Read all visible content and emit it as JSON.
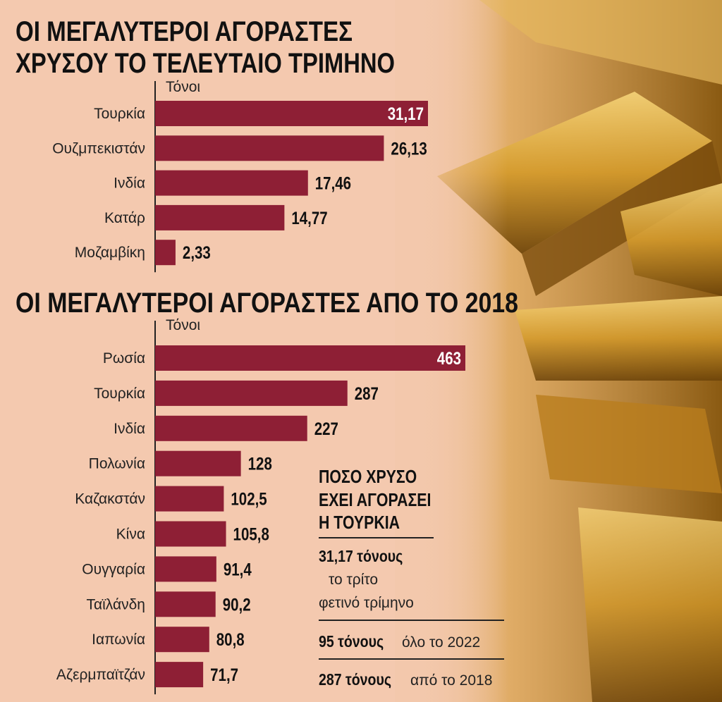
{
  "chart_data": [
    {
      "type": "bar",
      "orientation": "horizontal",
      "title": [
        "ΟΙ ΜΕΓΑΛΥΤΕΡΟΙ ΑΓΟΡΑΣΤΕΣ",
        "ΧΡΥΣΟΥ ΤΟ ΤΕΛΕΥΤΑΙΟ ΤΡΙΜΗΝΟ"
      ],
      "unit_label": "Τόνοι",
      "categories": [
        "Τουρκία",
        "Ουζμπεκιστάν",
        "Ινδία",
        "Κατάρ",
        "Μοζαμβίκη"
      ],
      "values": [
        31.17,
        26.13,
        17.46,
        14.77,
        2.33
      ],
      "value_labels": [
        "31,17",
        "26,13",
        "17,46",
        "14,77",
        "2,33"
      ],
      "color": "#8e1f35"
    },
    {
      "type": "bar",
      "orientation": "horizontal",
      "title": [
        "ΟΙ ΜΕΓΑΛΥΤΕΡΟΙ ΑΓΟΡΑΣΤΕΣ ΑΠΟ ΤΟ 2018"
      ],
      "unit_label": "Τόνοι",
      "categories": [
        "Ρωσία",
        "Τουρκία",
        "Ινδία",
        "Πολωνία",
        "Καζακστάν",
        "Κίνα",
        "Ουγγαρία",
        "Ταϊλάνδη",
        "Ιαπωνία",
        "Αζερμπαϊτζάν"
      ],
      "values": [
        463,
        287,
        227,
        128,
        102.5,
        105.8,
        91.4,
        90.2,
        80.8,
        71.7
      ],
      "value_labels": [
        "463",
        "287",
        "227",
        "128",
        "102,5",
        "105,8",
        "91,4",
        "90,2",
        "80,8",
        "71,7"
      ],
      "color": "#8e1f35"
    }
  ],
  "sidebar": {
    "title": [
      "ΠΟΣΟ ΧΡΥΣΟ",
      "ΕΧΕΙ ΑΓΟΡΑΣΕΙ",
      "Η ΤΟΥΡΚΙΑ"
    ],
    "facts": [
      {
        "bold": "31,17 τόνους",
        "text": [
          "το τρίτο",
          "φετινό τρίμηνο"
        ]
      },
      {
        "bold": "95 τόνους",
        "text": [
          "όλο το 2022"
        ]
      },
      {
        "bold": "287 τόνους",
        "text": [
          "από το 2018"
        ]
      }
    ]
  }
}
